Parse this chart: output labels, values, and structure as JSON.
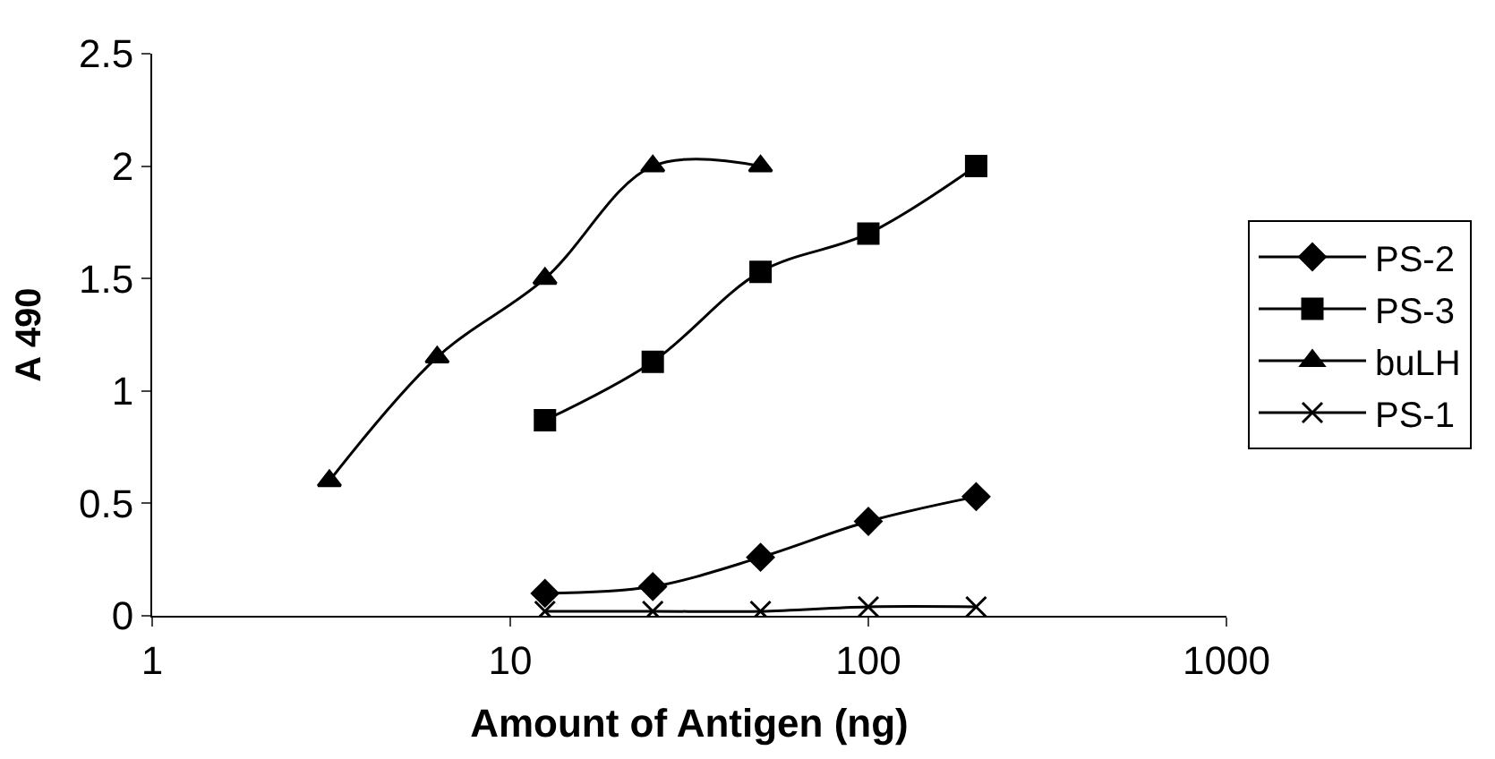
{
  "chart_data": {
    "type": "line",
    "xlabel": "Amount of Antigen (ng)",
    "ylabel": "A 490",
    "log": "x",
    "xlim": [
      1,
      1000
    ],
    "xticks": [
      1,
      10,
      100,
      1000
    ],
    "ylim": [
      0,
      2.5
    ],
    "yticks": [
      0,
      0.5,
      1,
      1.5,
      2,
      2.5
    ],
    "legend": "right",
    "series": [
      {
        "name": "PS-2",
        "color": "#000000",
        "marker": "diamond",
        "x": [
          12.5,
          25,
          50,
          100,
          200
        ],
        "values": [
          0.1,
          0.13,
          0.26,
          0.42,
          0.53
        ]
      },
      {
        "name": "PS-3",
        "color": "#000000",
        "marker": "square",
        "x": [
          12.5,
          25,
          50,
          100,
          200
        ],
        "values": [
          0.87,
          1.13,
          1.53,
          1.7,
          2.0
        ]
      },
      {
        "name": "buLH",
        "color": "#000000",
        "marker": "triangle",
        "x": [
          3.125,
          6.25,
          12.5,
          25,
          50
        ],
        "values": [
          0.6,
          1.15,
          1.5,
          2.0,
          2.0
        ]
      },
      {
        "name": "PS-1",
        "color": "#000000",
        "marker": "cross",
        "x": [
          12.5,
          25,
          50,
          100,
          200
        ],
        "values": [
          0.02,
          0.02,
          0.02,
          0.04,
          0.04
        ]
      }
    ]
  }
}
